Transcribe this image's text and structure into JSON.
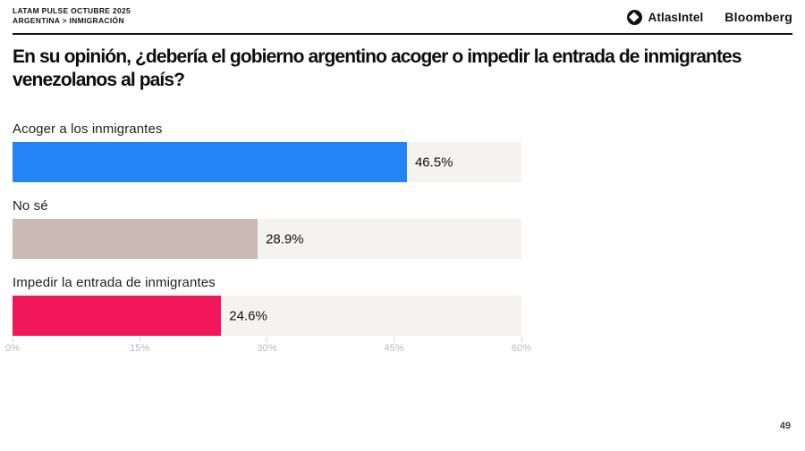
{
  "header": {
    "report_line1": "LATAM PULSE OCTUBRE 2025",
    "report_line2": "ARGENTINA > INMIGRACIÓN",
    "brand_atlasintel": "AtlasIntel",
    "brand_bloomberg": "Bloomberg",
    "logo_icon": "atlasintel-circle-diamond"
  },
  "title": "En su opinión, ¿debería el gobierno argentino acoger o impedir la entrada de inmigrantes venezolanos al país?",
  "page_number": "49",
  "chart_data": {
    "type": "bar",
    "orientation": "horizontal",
    "categories": [
      "Acoger a los inmigrantes",
      "No sé",
      "Impedir la entrada de inmigrantes"
    ],
    "values": [
      46.5,
      28.9,
      24.6
    ],
    "value_labels": [
      "46.5%",
      "28.9%",
      "24.6%"
    ],
    "bar_colors": [
      "#2484f7",
      "#c9bab3",
      "#f1175a"
    ],
    "track_color": "#f4f3f0",
    "xlim": [
      0,
      60
    ],
    "x_ticks": [
      "0%",
      "15%",
      "30%",
      "45%",
      "60%"
    ],
    "grid": false,
    "legend": false,
    "title": "En su opinión, ¿debería el gobierno argentino acoger o impedir la entrada de inmigrantes venezolanos al país?",
    "xlabel": "",
    "ylabel": ""
  }
}
